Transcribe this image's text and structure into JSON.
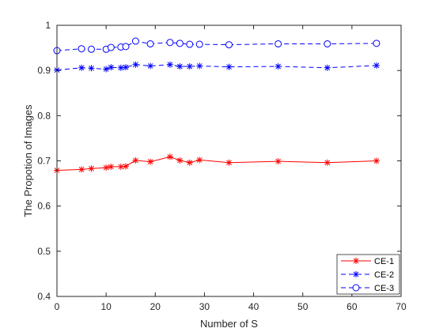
{
  "chart_data": {
    "type": "line",
    "title": "",
    "xlabel": "Number of S",
    "ylabel": "The Propotion of Images",
    "xlim": [
      0,
      70
    ],
    "ylim": [
      0.4,
      1
    ],
    "xticks": [
      "0",
      "10",
      "20",
      "30",
      "40",
      "50",
      "60",
      "70"
    ],
    "yticks": [
      "0.4",
      "0.5",
      "0.6",
      "0.7",
      "0.8",
      "0.9",
      "1"
    ],
    "grid": false,
    "legend_position": "bottom-right",
    "series": [
      {
        "name": "CE-1",
        "color": "#ff0000",
        "line_style": "solid",
        "marker": "asterisk",
        "x": [
          0,
          5,
          7,
          10,
          11,
          13,
          14,
          16,
          19,
          23,
          25,
          27,
          29,
          35,
          45,
          55,
          65
        ],
        "y": [
          0.679,
          0.681,
          0.683,
          0.685,
          0.687,
          0.687,
          0.688,
          0.701,
          0.698,
          0.709,
          0.701,
          0.696,
          0.702,
          0.696,
          0.699,
          0.696,
          0.7
        ]
      },
      {
        "name": "CE-2",
        "color": "#0000ff",
        "line_style": "dashed",
        "marker": "asterisk",
        "x": [
          0,
          5,
          7,
          10,
          11,
          13,
          14,
          16,
          19,
          23,
          25,
          27,
          29,
          35,
          45,
          55,
          65
        ],
        "y": [
          0.901,
          0.906,
          0.905,
          0.903,
          0.907,
          0.906,
          0.907,
          0.913,
          0.91,
          0.913,
          0.909,
          0.909,
          0.91,
          0.908,
          0.909,
          0.906,
          0.911
        ]
      },
      {
        "name": "CE-3",
        "color": "#0000ff",
        "line_style": "dashed",
        "marker": "circle",
        "x": [
          0,
          5,
          7,
          10,
          11,
          13,
          14,
          16,
          19,
          23,
          25,
          27,
          29,
          35,
          45,
          55,
          65
        ],
        "y": [
          0.944,
          0.948,
          0.947,
          0.947,
          0.951,
          0.952,
          0.953,
          0.965,
          0.959,
          0.962,
          0.96,
          0.958,
          0.958,
          0.957,
          0.959,
          0.959,
          0.96
        ]
      }
    ]
  }
}
